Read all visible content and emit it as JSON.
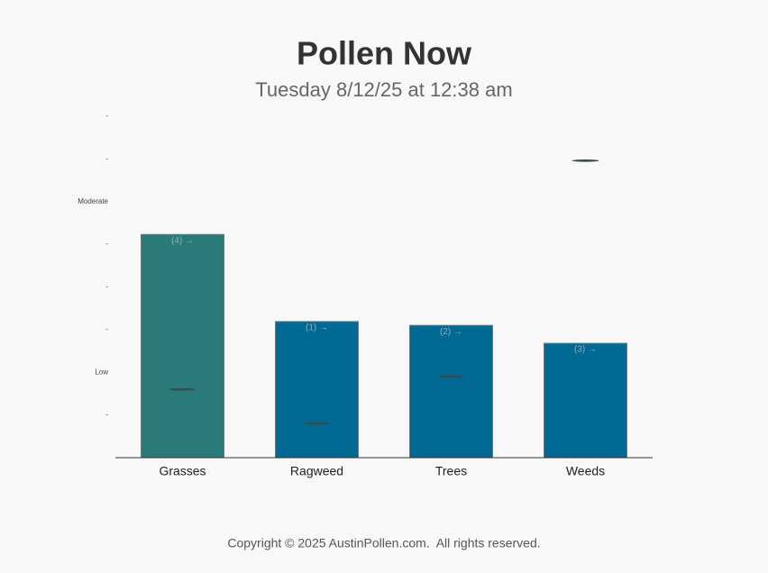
{
  "header": {
    "title": "Pollen Now",
    "subtitle": "Tuesday 8/12/25 at 12:38 am"
  },
  "chart_data": {
    "type": "bar",
    "categories": [
      "Grasses",
      "Ragweed",
      "Trees",
      "Weeds"
    ],
    "values": [
      5.23,
      3.19,
      3.1,
      2.68
    ],
    "colors": [
      "#2a7a7a",
      "#006994",
      "#006994",
      "#006994"
    ],
    "bar_labels": [
      "(4) →",
      "(1) →",
      "(2) →",
      "(3) →"
    ],
    "marker_values": [
      1.6,
      0.8,
      1.9,
      6.96
    ],
    "marker_color": "#3a4a4a",
    "ylim": [
      0,
      8
    ],
    "yticks": [
      {
        "value": 1,
        "label": "-"
      },
      {
        "value": 2,
        "label": "Low"
      },
      {
        "value": 3,
        "label": "-"
      },
      {
        "value": 4,
        "label": "-"
      },
      {
        "value": 5,
        "label": "-"
      },
      {
        "value": 6,
        "label": "Moderate"
      },
      {
        "value": 7,
        "label": "-"
      },
      {
        "value": 8,
        "label": "-"
      }
    ],
    "grid": false
  },
  "footer": {
    "text": "Copyright © 2025 AustinPollen.com.  All rights reserved."
  }
}
